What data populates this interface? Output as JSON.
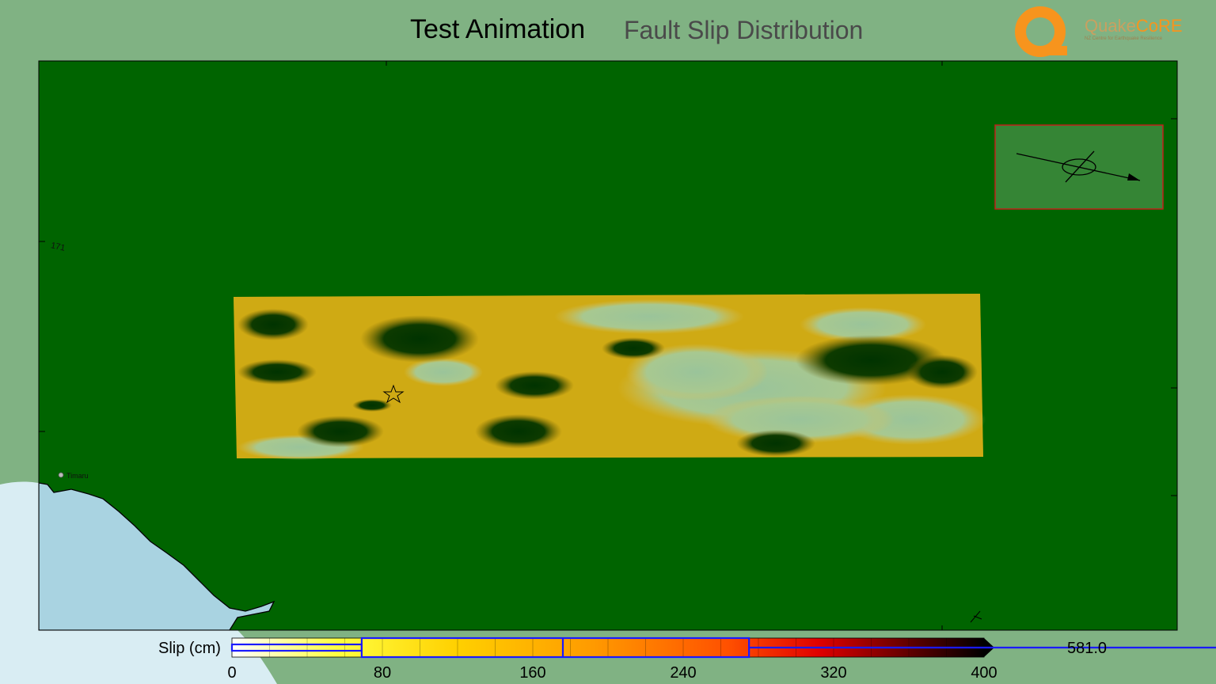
{
  "header": {
    "title": "Test Animation",
    "subtitle": "Fault Slip Distribution"
  },
  "logo": {
    "name_a": "Quake",
    "name_b": "CoRE",
    "tagline": "NZ Centre for Earthquake Resilience"
  },
  "map": {
    "place_label": "Timaru",
    "grid_label": "171",
    "hypocentre_icon": "star-icon",
    "compass_icon": "fault-orientation-icon",
    "colors": {
      "land": "#006400",
      "sea": "#a9d3e1",
      "background": "#80b283",
      "inset": "#358535"
    }
  },
  "colorbar": {
    "label": "Slip (cm)",
    "ticks": [
      "0",
      "80",
      "160",
      "240",
      "320",
      "400"
    ],
    "tick_values": [
      0,
      80,
      160,
      240,
      320,
      400
    ],
    "range": [
      0,
      400
    ],
    "max_value_label": "581.0",
    "box_whisker": {
      "min": 0,
      "q1": 69,
      "median": 176,
      "q3": 275,
      "max": 581
    },
    "colormap": [
      "#ffffff",
      "#ffff00",
      "#ffa500",
      "#ff4500",
      "#ff0000",
      "#8b0000",
      "#000000"
    ]
  }
}
